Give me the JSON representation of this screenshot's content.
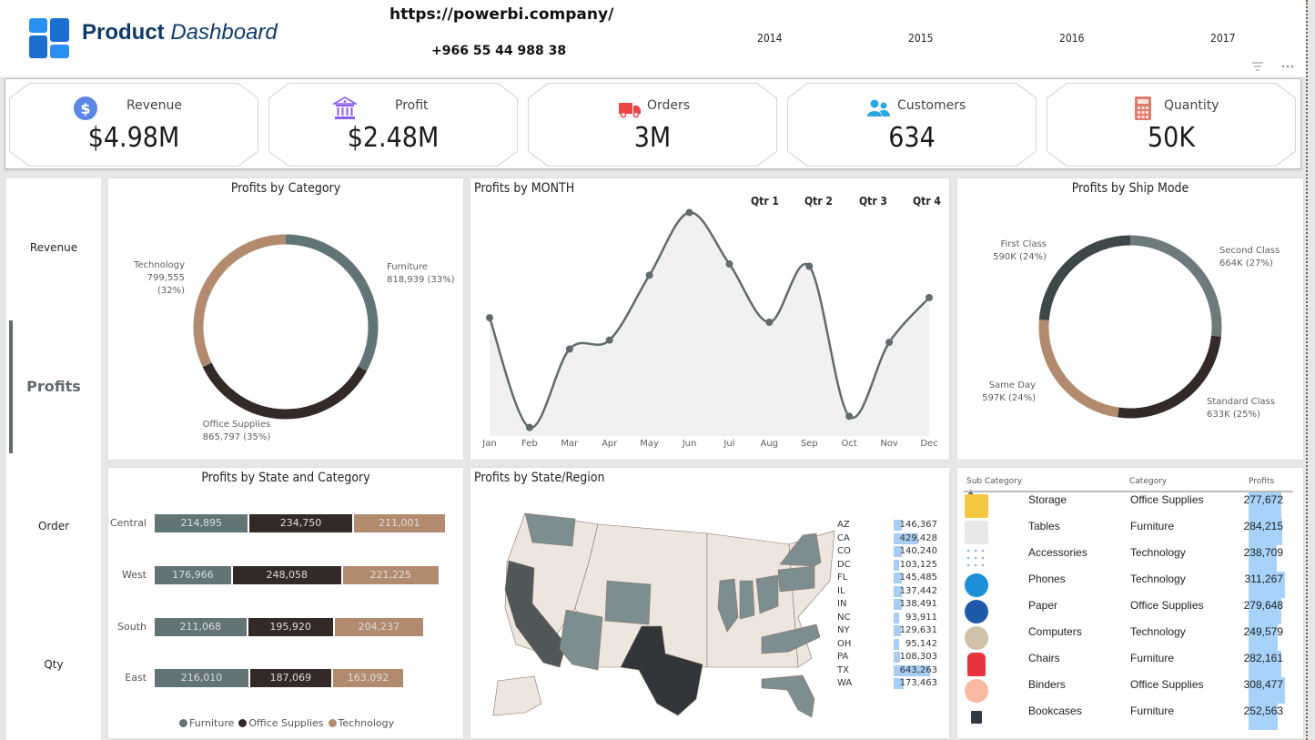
{
  "header": {
    "brand_bold": "Product",
    "brand_italic": "Dashboard",
    "url": "https://powerbi.company/",
    "phone": "+966 55 44 988 38",
    "years": [
      "2014",
      "2015",
      "2016",
      "2017"
    ],
    "filter_icon": "filter-icon",
    "more_icon": "more-options-icon"
  },
  "kpis": [
    {
      "label": "Revenue",
      "value": "$4.98M",
      "icon": "dollar-icon",
      "color": "#5b86e5"
    },
    {
      "label": "Profit",
      "value": "$2.48M",
      "icon": "bank-icon",
      "color": "#8b5cf6"
    },
    {
      "label": "Orders",
      "value": "3M",
      "icon": "truck-icon",
      "color": "#ef4444"
    },
    {
      "label": "Customers",
      "value": "634",
      "icon": "users-icon",
      "color": "#29a8e0"
    },
    {
      "label": "Quantity",
      "value": "50K",
      "icon": "calculator-icon",
      "color": "#e07a6a"
    }
  ],
  "sidebar": {
    "items": [
      {
        "label": "Revenue",
        "active": false
      },
      {
        "label": "Profits",
        "active": true
      },
      {
        "label": "Order",
        "active": false
      },
      {
        "label": "Qty",
        "active": false
      }
    ]
  },
  "colors": {
    "furniture": "#627476",
    "office_supplies": "#332a28",
    "technology": "#b28b6f",
    "first_class": "#3e4748",
    "second_class": "#6c7a7c",
    "standard_class": "#332a28",
    "same_day": "#b28b6f",
    "line": "#5f6b6d",
    "area": "#f0f1f0",
    "databar": "#a7cdf3"
  },
  "chart_data": [
    {
      "type": "pie",
      "title": "Profits by Category",
      "donut": true,
      "slices": [
        {
          "label": "Furniture",
          "value": 818939,
          "display": "818,939 (33%)",
          "percent": 33
        },
        {
          "label": "Office Supplies",
          "value": 865797,
          "display": "865,797 (35%)",
          "percent": 35
        },
        {
          "label": "Technology",
          "value": 799555,
          "display": "799,555 (32%)",
          "percent": 32
        }
      ]
    },
    {
      "type": "area",
      "title": "Profits by MONTH",
      "x": [
        "Jan",
        "Feb",
        "Mar",
        "Apr",
        "May",
        "Jun",
        "Jul",
        "Aug",
        "Sep",
        "Oct",
        "Nov",
        "Dec"
      ],
      "values": [
        52,
        3,
        38,
        42,
        71,
        99,
        76,
        50,
        75,
        8,
        41,
        61
      ],
      "ylim": [
        0,
        100
      ],
      "quarter_slicer": [
        "Qtr 1",
        "Qtr 2",
        "Qtr 3",
        "Qtr 4"
      ]
    },
    {
      "type": "pie",
      "title": "Profits by Ship Mode",
      "donut": true,
      "slices": [
        {
          "label": "Second Class",
          "value": 664000,
          "display": "664K (27%)",
          "percent": 27
        },
        {
          "label": "Standard Class",
          "value": 633000,
          "display": "633K (25%)",
          "percent": 25
        },
        {
          "label": "Same Day",
          "value": 597000,
          "display": "597K (24%)",
          "percent": 24
        },
        {
          "label": "First Class",
          "value": 590000,
          "display": "590K (24%)",
          "percent": 24
        }
      ]
    },
    {
      "type": "bar",
      "title": "Profits by State and Category",
      "orientation": "horizontal",
      "stacked": true,
      "categories": [
        "Central",
        "West",
        "South",
        "East"
      ],
      "series": [
        {
          "name": "Furniture",
          "values": [
            214895,
            176966,
            211068,
            216010
          ],
          "labels": [
            "214,895",
            "176,966",
            "211,068",
            "216,010"
          ]
        },
        {
          "name": "Office Supplies",
          "values": [
            234750,
            248058,
            195920,
            187069
          ],
          "labels": [
            "234,750",
            "248,058",
            "195,920",
            "187,069"
          ]
        },
        {
          "name": "Technology",
          "values": [
            211001,
            221225,
            204237,
            163092
          ],
          "labels": [
            "211,001",
            "221,225",
            "204,237",
            "163,092"
          ]
        }
      ],
      "legend": "bottom"
    },
    {
      "type": "table",
      "title": "Profits by State/Region",
      "rows": [
        {
          "state": "AZ",
          "value": 146367,
          "display": "146,367"
        },
        {
          "state": "CA",
          "value": 429428,
          "display": "429,428"
        },
        {
          "state": "CO",
          "value": 140240,
          "display": "140,240"
        },
        {
          "state": "DC",
          "value": 103125,
          "display": "103,125"
        },
        {
          "state": "FL",
          "value": 145485,
          "display": "145,485"
        },
        {
          "state": "IL",
          "value": 137442,
          "display": "137,442"
        },
        {
          "state": "IN",
          "value": 138491,
          "display": "138,491"
        },
        {
          "state": "NC",
          "value": 93911,
          "display": "93,911"
        },
        {
          "state": "NY",
          "value": 129631,
          "display": "129,631"
        },
        {
          "state": "OH",
          "value": 95142,
          "display": "95,142"
        },
        {
          "state": "PA",
          "value": 108303,
          "display": "108,303"
        },
        {
          "state": "TX",
          "value": 643263,
          "display": "643,263"
        },
        {
          "state": "WA",
          "value": 173463,
          "display": "173,463"
        }
      ]
    },
    {
      "type": "table",
      "title": "",
      "columns": [
        "Sub Category",
        "Category",
        "Profits"
      ],
      "rows": [
        {
          "sub": "Storage",
          "category": "Office Supplies",
          "value": 277672,
          "display": "277,672",
          "icon": "storage-icon"
        },
        {
          "sub": "Tables",
          "category": "Furniture",
          "value": 284215,
          "display": "284,215",
          "icon": "table-icon"
        },
        {
          "sub": "Accessories",
          "category": "Technology",
          "value": 238709,
          "display": "238,709",
          "icon": "accessories-icon"
        },
        {
          "sub": "Phones",
          "category": "Technology",
          "value": 311267,
          "display": "311,267",
          "icon": "phone-icon"
        },
        {
          "sub": "Paper",
          "category": "Office Supplies",
          "value": 279648,
          "display": "279,648",
          "icon": "paper-icon"
        },
        {
          "sub": "Computers",
          "category": "Technology",
          "value": 249579,
          "display": "249,579",
          "icon": "computer-icon"
        },
        {
          "sub": "Chairs",
          "category": "Furniture",
          "value": 282161,
          "display": "282,161",
          "icon": "chair-icon"
        },
        {
          "sub": "Binders",
          "category": "Office Supplies",
          "value": 308477,
          "display": "308,477",
          "icon": "binders-icon"
        },
        {
          "sub": "Bookcases",
          "category": "Furniture",
          "value": 252563,
          "display": "252,563",
          "icon": "bookcase-icon"
        }
      ]
    }
  ]
}
